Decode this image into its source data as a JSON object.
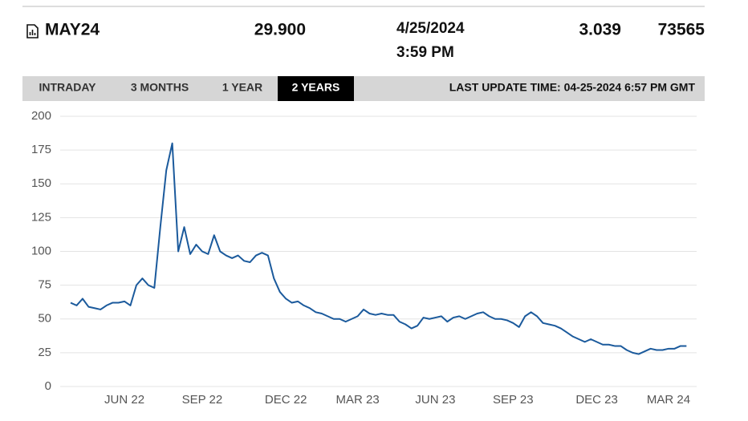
{
  "header": {
    "symbol": "MAY24",
    "last": "29.900",
    "date": "4/25/2024",
    "time": "3:59 PM",
    "change": "3.039",
    "volume": "73565"
  },
  "tabs": {
    "items": [
      "INTRADAY",
      "3 MONTHS",
      "1 YEAR",
      "2 YEARS"
    ],
    "active": 3
  },
  "last_update": "LAST UPDATE TIME: 04-25-2024 6:57 PM GMT",
  "chart_data": {
    "type": "line",
    "color": "#1b5a9c",
    "grid": true,
    "ylim": [
      0,
      200
    ],
    "yticks": [
      0,
      25,
      50,
      75,
      100,
      125,
      150,
      175,
      200
    ],
    "categories": [
      null,
      null,
      null,
      null,
      null,
      null,
      null,
      null,
      null,
      "JUN 22",
      null,
      null,
      null,
      null,
      null,
      null,
      null,
      null,
      null,
      null,
      null,
      null,
      "SEP 22",
      null,
      null,
      null,
      null,
      null,
      null,
      null,
      null,
      null,
      null,
      null,
      null,
      null,
      "DEC 22",
      null,
      null,
      null,
      null,
      null,
      null,
      null,
      null,
      null,
      null,
      null,
      "MAR 23",
      null,
      null,
      null,
      null,
      null,
      null,
      null,
      null,
      null,
      null,
      null,
      null,
      "JUN 23",
      null,
      null,
      null,
      null,
      null,
      null,
      null,
      null,
      null,
      null,
      null,
      null,
      "SEP 23",
      null,
      null,
      null,
      null,
      null,
      null,
      null,
      null,
      null,
      null,
      null,
      null,
      null,
      "DEC 23",
      null,
      null,
      null,
      null,
      null,
      null,
      null,
      null,
      null,
      null,
      null,
      "MAR 24",
      null,
      null,
      null
    ],
    "values": [
      62,
      60,
      65,
      59,
      58,
      57,
      60,
      62,
      62,
      63,
      60,
      75,
      80,
      75,
      73,
      118,
      160,
      180,
      100,
      118,
      98,
      105,
      100,
      98,
      112,
      100,
      97,
      95,
      97,
      93,
      92,
      97,
      99,
      97,
      80,
      70,
      65,
      62,
      63,
      60,
      58,
      55,
      54,
      52,
      50,
      50,
      48,
      50,
      52,
      57,
      54,
      53,
      54,
      53,
      53,
      48,
      46,
      43,
      45,
      51,
      50,
      51,
      52,
      48,
      51,
      52,
      50,
      52,
      54,
      55,
      52,
      50,
      50,
      49,
      47,
      44,
      52,
      55,
      52,
      47,
      46,
      45,
      43,
      40,
      37,
      35,
      33,
      35,
      33,
      31,
      31,
      30,
      30,
      27,
      25,
      24,
      26,
      28,
      27,
      27,
      28,
      28,
      30,
      30
    ]
  }
}
